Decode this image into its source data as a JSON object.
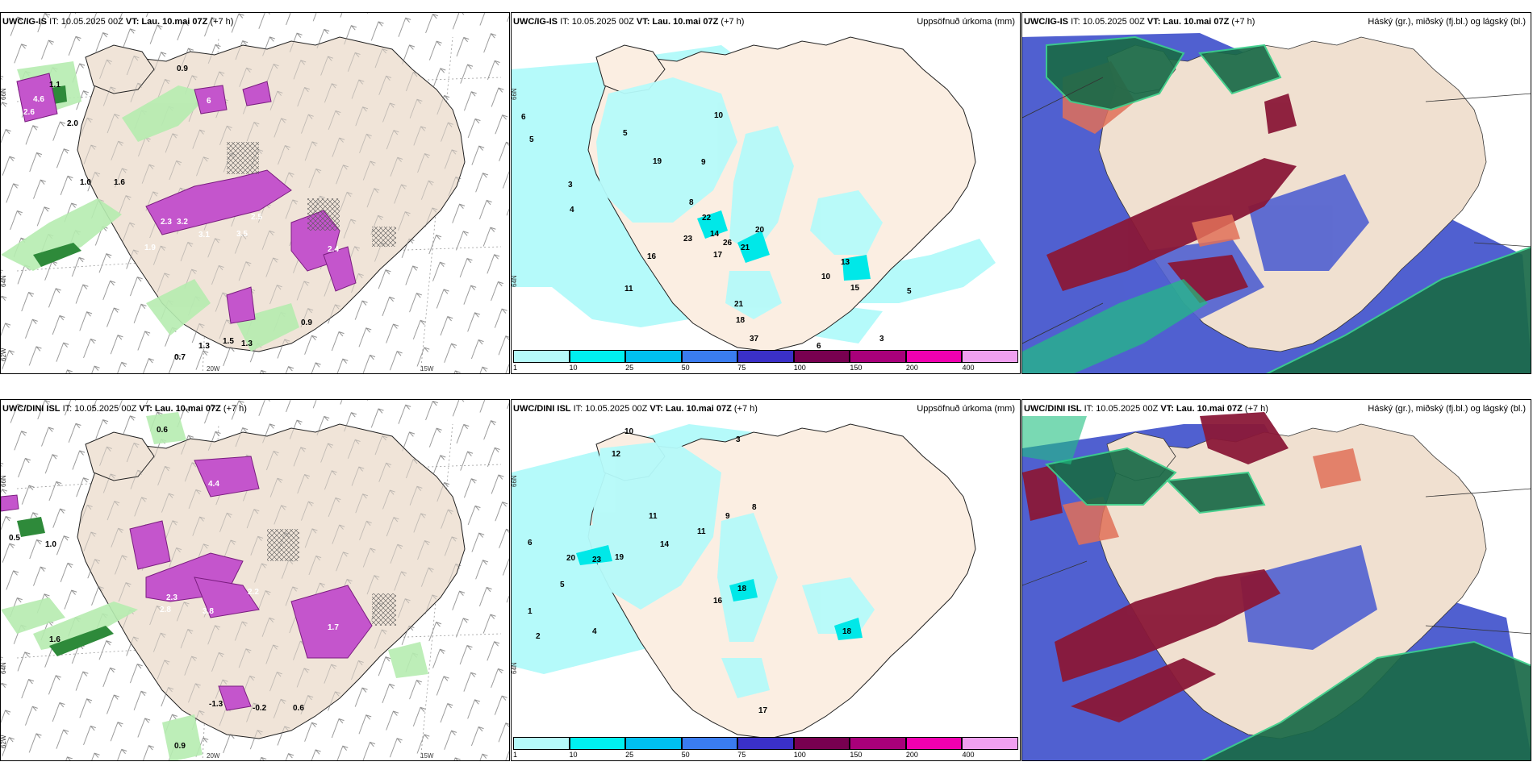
{
  "panels": {
    "top": {
      "left": {
        "model": "UWC/IG-IS",
        "it": "IT: 10.05.2025 00Z",
        "vt_label": "VT:",
        "vt": "Lau. 10.mai 07Z",
        "lead": "(+7 h)",
        "title_right": ""
      },
      "mid": {
        "model": "UWC/IG-IS",
        "it": "IT: 10.05.2025 00Z",
        "vt_label": "VT:",
        "vt": "Lau. 10.mai 07Z",
        "lead": "(+7 h)",
        "title_right": "Uppsöfnuð úrkoma (mm)"
      },
      "right": {
        "model": "UWC/IG-IS",
        "it": "IT: 10.05.2025 00Z",
        "vt_label": "VT:",
        "vt": "Lau. 10.mai 07Z",
        "lead": "(+7 h)",
        "title_right": "Háský (gr.), miðský (fj.bl.) og lágský (bl.)"
      }
    },
    "bottom": {
      "left": {
        "model": "UWC/DINI ISL",
        "it": "IT: 10.05.2025 00Z",
        "vt_label": "VT:",
        "vt": "Lau. 10.mai 07Z",
        "lead": "(+7 h)",
        "title_right": ""
      },
      "mid": {
        "model": "UWC/DINI ISL",
        "it": "IT: 10.05.2025 00Z",
        "vt_label": "VT:",
        "vt": "Lau. 10.mai 07Z",
        "lead": "(+7 h)",
        "title_right": "Uppsöfnuð úrkoma (mm)"
      },
      "right": {
        "model": "UWC/DINI ISL",
        "it": "IT: 10.05.2025 00Z",
        "vt_label": "VT:",
        "vt": "Lau. 10.mai 07Z",
        "lead": "(+7 h)",
        "title_right": "Háský (gr.), miðský (fj.bl.) og lágský (bl.)"
      }
    }
  },
  "axes": {
    "lat": [
      "66N",
      "64N",
      "62W"
    ],
    "lon": [
      "20W",
      "15W"
    ]
  },
  "colorbar": {
    "ticks": [
      "1",
      "10",
      "25",
      "50",
      "75",
      "100",
      "150",
      "200",
      "400"
    ],
    "colors": [
      "#b5fafa",
      "#00f0f0",
      "#00c0f0",
      "#3a7cf0",
      "#3a30c8",
      "#780050",
      "#a8007a",
      "#f000b0",
      "#f0a0f0"
    ]
  },
  "labels": {
    "top_left": [
      "1.1",
      "2.6",
      "4.6",
      "2.0",
      "0.9",
      "6",
      "1.0",
      "2.3",
      "3.2",
      "3.1",
      "3.5",
      "2.5",
      "2.4",
      "1.9",
      "1.6",
      "1.5",
      "1.3",
      "0.9",
      "0.7",
      "1.3"
    ],
    "top_mid": [
      "6",
      "5",
      "3",
      "4",
      "5",
      "10",
      "19",
      "9",
      "8",
      "22",
      "14",
      "20",
      "23",
      "16",
      "26",
      "21",
      "17",
      "11",
      "13",
      "10",
      "15",
      "21",
      "18",
      "37",
      "6",
      "5",
      "3"
    ],
    "bottom_left": [
      "0.6",
      "0.5",
      "1.0",
      "2.5",
      "4.4",
      "2.3",
      "2.8",
      "3.8",
      "2.2",
      "1.7",
      "1.6",
      "-1.3",
      "-0.2",
      "0.6",
      "0.9"
    ],
    "bottom_mid": [
      "10",
      "12",
      "3",
      "11",
      "14",
      "20",
      "23",
      "19",
      "18",
      "16",
      "11",
      "9",
      "8",
      "6",
      "5",
      "4",
      "2",
      "1",
      "17",
      "18"
    ]
  }
}
